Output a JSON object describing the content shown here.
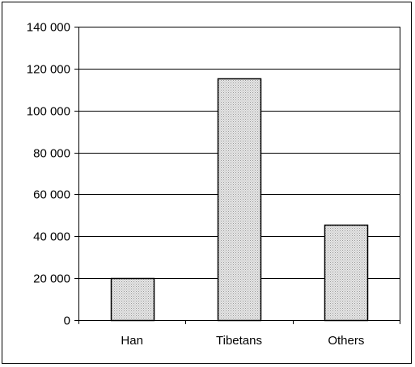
{
  "chart_data": {
    "type": "bar",
    "categories": [
      "Han",
      "Tibetans",
      "Others"
    ],
    "values": [
      20000,
      115500,
      45500
    ],
    "ylim": [
      0,
      140000
    ],
    "yticks": [
      0,
      20000,
      40000,
      60000,
      80000,
      100000,
      120000,
      140000
    ],
    "ytick_labels": [
      "0",
      "20 000",
      "40 000",
      "60 000",
      "80 000",
      "100 000",
      "120 000",
      "140 000"
    ],
    "title": "",
    "xlabel": "",
    "ylabel": "",
    "grid": "horizontal",
    "legend": "none",
    "colors": {
      "bar_fill": "#d9d9d9",
      "bar_stroke": "#000000",
      "grid": "#000000",
      "frame": "#000000"
    }
  }
}
